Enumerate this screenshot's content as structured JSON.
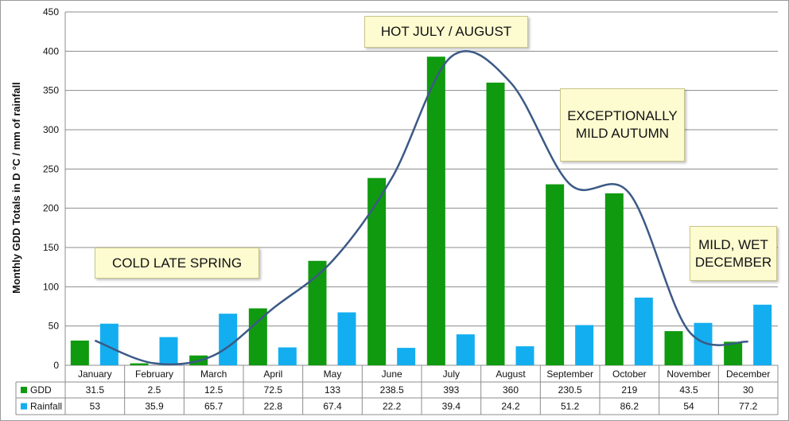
{
  "chart_data": {
    "type": "bar",
    "ylabel": "Monthly GDD Totals in D °C / mm of rainfall",
    "ylim": [
      0,
      450
    ],
    "yticks": [
      0,
      50,
      100,
      150,
      200,
      250,
      300,
      350,
      400,
      450
    ],
    "categories": [
      "January",
      "February",
      "March",
      "April",
      "May",
      "June",
      "July",
      "August",
      "September",
      "October",
      "November",
      "December"
    ],
    "series": [
      {
        "name": "GDD",
        "color": "#0f9a0f",
        "values": [
          31.5,
          2.5,
          12.5,
          72.5,
          133,
          238.5,
          393,
          360,
          230.5,
          219,
          43.5,
          30
        ],
        "labels": [
          "31.5",
          "2.5",
          "12.5",
          "72.5",
          "133",
          "238.5",
          "393",
          "360",
          "230.5",
          "219",
          "43.5",
          "30"
        ]
      },
      {
        "name": "Rainfall",
        "color": "#13aef0",
        "values": [
          53,
          35.9,
          65.7,
          22.8,
          67.4,
          22.2,
          39.4,
          24.2,
          51.2,
          86.2,
          54,
          77.2
        ],
        "labels": [
          "53",
          "35.9",
          "65.7",
          "22.8",
          "67.4",
          "22.2",
          "39.4",
          "24.2",
          "51.2",
          "86.2",
          "54",
          "77.2"
        ]
      }
    ],
    "trendline": {
      "series": "GDD",
      "color": "#3c5a86",
      "style": "smooth"
    },
    "data_table": true,
    "annotations": [
      {
        "id": "hot",
        "lines": [
          "HOT JULY / AUGUST"
        ]
      },
      {
        "id": "autumn",
        "lines": [
          "EXCEPTIONALLY",
          "MILD AUTUMN"
        ]
      },
      {
        "id": "spring",
        "lines": [
          "COLD LATE SPRING"
        ]
      },
      {
        "id": "december",
        "lines": [
          "MILD, WET",
          "DECEMBER"
        ]
      }
    ]
  }
}
